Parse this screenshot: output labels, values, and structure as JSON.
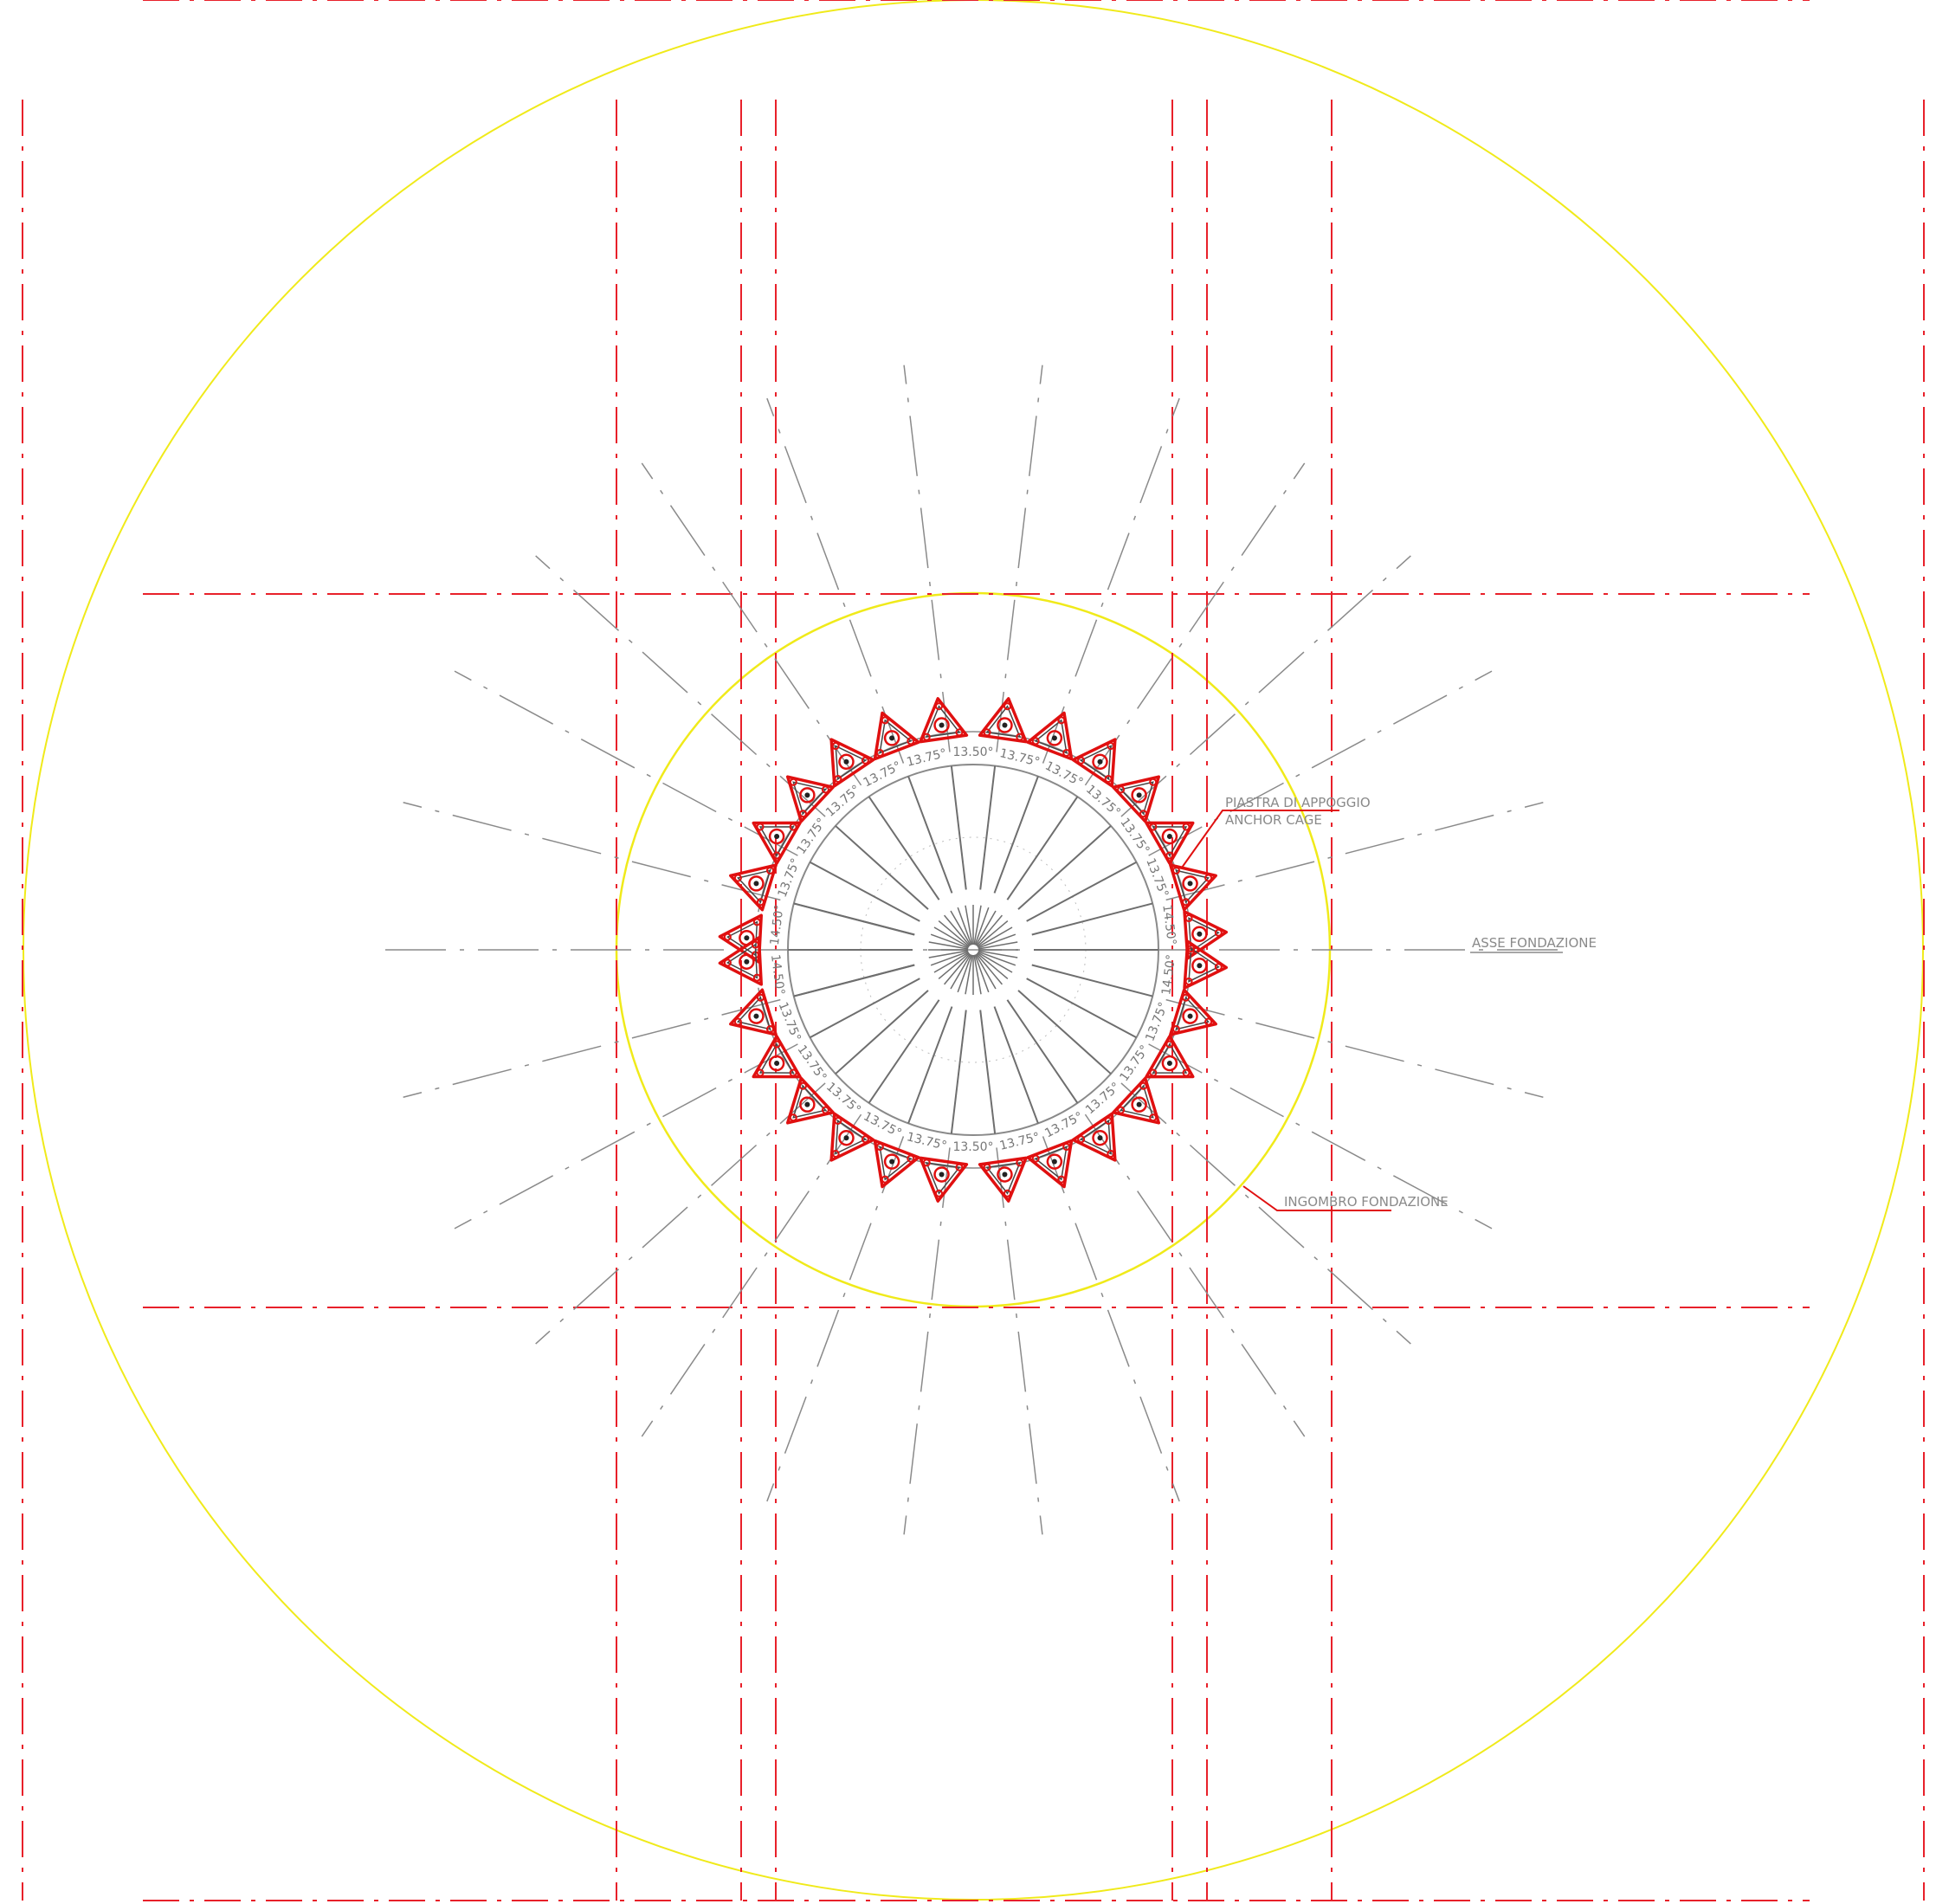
{
  "labels": {
    "plate_it": "PIASTRA DI APPOGGIO",
    "plate_en": "ANCHOR CAGE",
    "axis": "ASSE FONDAZIONE",
    "footprint": "INGOMBRO FONDAZIONE"
  },
  "upper_angle_labels": [
    "14.50°",
    "13.75°",
    "13.75°",
    "13.75°",
    "13.75°",
    "13.75°",
    "13.50°",
    "13.75°",
    "13.75°",
    "13.75°",
    "13.75°",
    "13.75°",
    "14.50°"
  ],
  "lower_angle_labels": [
    "14.50°",
    "13.75°",
    "13.75°",
    "13.75°",
    "13.75°",
    "13.75°",
    "13.50°",
    "13.75°",
    "13.75°",
    "13.75°",
    "13.75°",
    "13.75°",
    "14.50°"
  ],
  "colors": {
    "construction_red": "#e8202a",
    "footprint_yellow": "#f0ea1a",
    "axis_gray": "#8a8a8a",
    "plate_red": "#e01010"
  }
}
